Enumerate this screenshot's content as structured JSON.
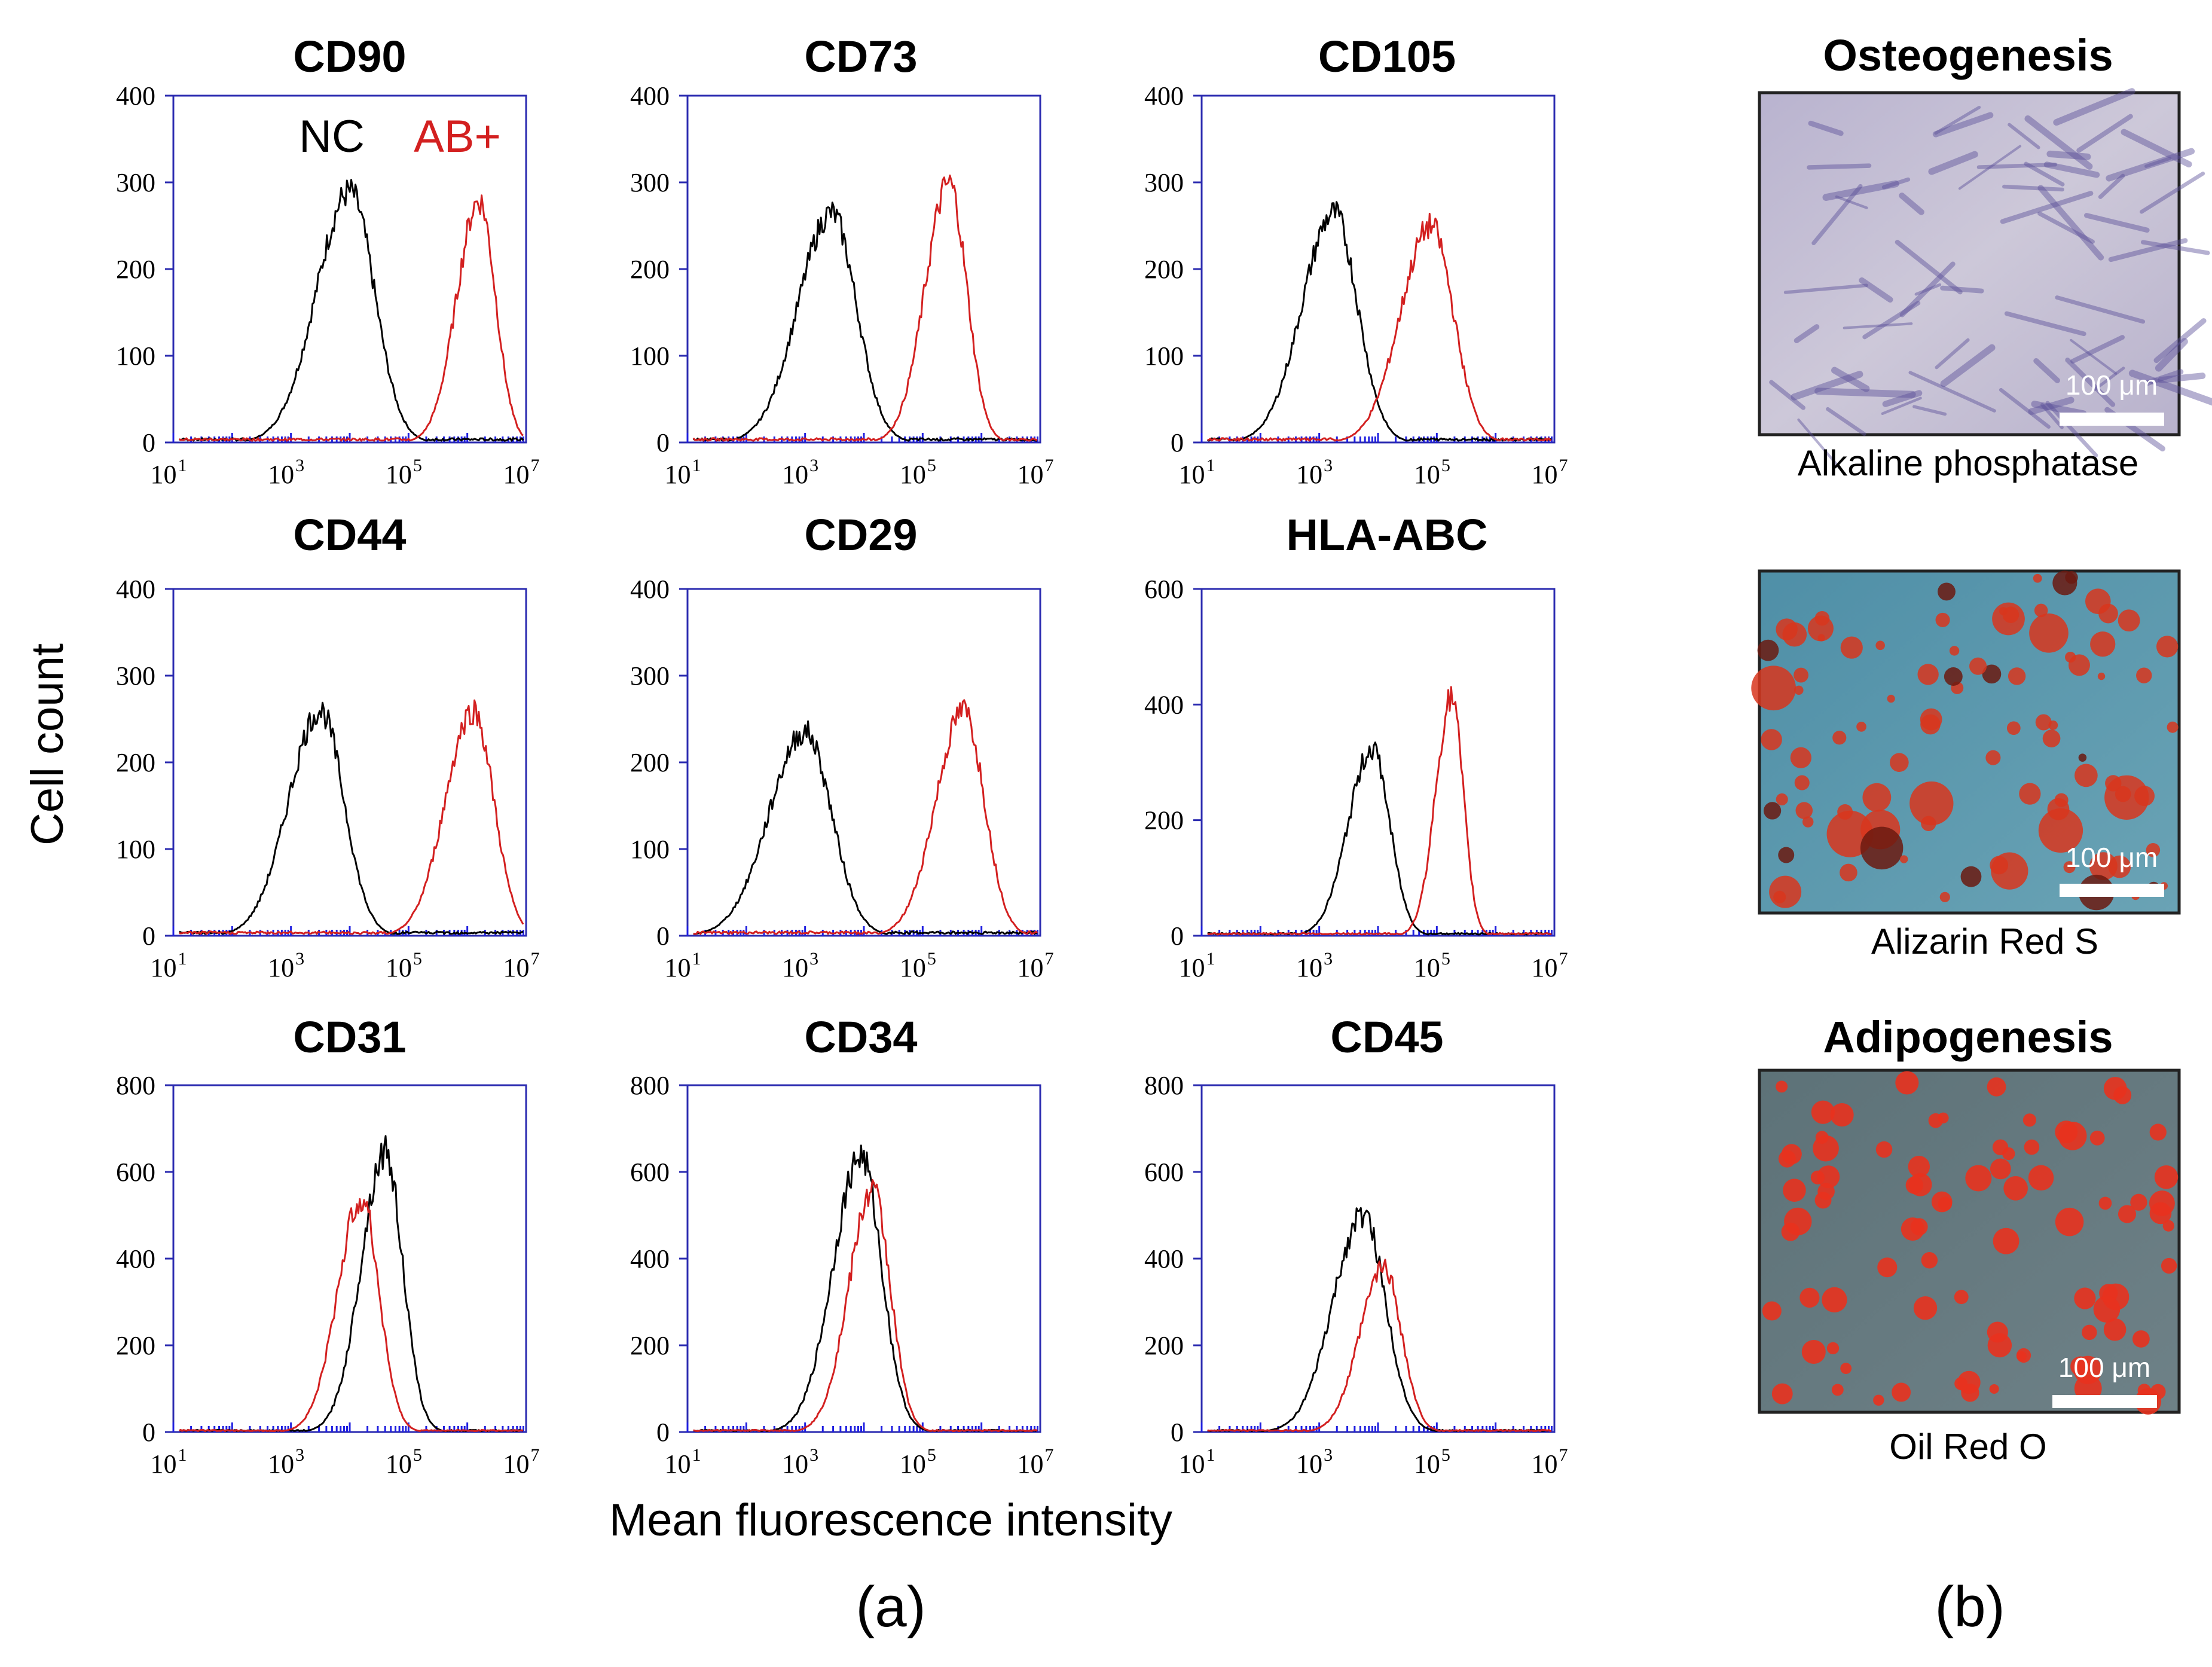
{
  "chart_data": [
    {
      "type": "line",
      "title": "CD90",
      "ylim": [
        0,
        400
      ],
      "yticks": [
        0,
        100,
        200,
        300,
        400
      ],
      "xscale": "log",
      "xticks": [
        "10^1",
        "10^3",
        "10^5",
        "10^7"
      ],
      "series": [
        {
          "name": "NC",
          "color": "#000000",
          "mode": 4.0,
          "peak": 295,
          "sigma": 0.42
        },
        {
          "name": "AB+",
          "color": "#d32020",
          "mode": 6.2,
          "peak": 285,
          "sigma": 0.28
        }
      ]
    },
    {
      "type": "line",
      "title": "CD73",
      "ylim": [
        0,
        400
      ],
      "yticks": [
        0,
        100,
        200,
        300,
        400
      ],
      "xscale": "log",
      "xticks": [
        "10^1",
        "10^3",
        "10^5",
        "10^7"
      ],
      "series": [
        {
          "name": "NC",
          "color": "#000000",
          "mode": 3.45,
          "peak": 270,
          "sigma": 0.42
        },
        {
          "name": "AB+",
          "color": "#d32020",
          "mode": 5.45,
          "peak": 305,
          "sigma": 0.3
        }
      ]
    },
    {
      "type": "line",
      "title": "CD105",
      "ylim": [
        0,
        400
      ],
      "yticks": [
        0,
        100,
        200,
        300,
        400
      ],
      "xscale": "log",
      "xticks": [
        "10^1",
        "10^3",
        "10^5",
        "10^7"
      ],
      "series": [
        {
          "name": "NC",
          "color": "#000000",
          "mode": 3.25,
          "peak": 270,
          "sigma": 0.4
        },
        {
          "name": "AB+",
          "color": "#d32020",
          "mode": 4.9,
          "peak": 255,
          "sigma": 0.38
        }
      ]
    },
    {
      "type": "line",
      "title": "CD44",
      "ylim": [
        0,
        400
      ],
      "yticks": [
        0,
        100,
        200,
        300,
        400
      ],
      "xscale": "log",
      "xticks": [
        "10^1",
        "10^3",
        "10^5",
        "10^7"
      ],
      "series": [
        {
          "name": "NC",
          "color": "#000000",
          "mode": 3.5,
          "peak": 265,
          "sigma": 0.4
        },
        {
          "name": "AB+",
          "color": "#d32020",
          "mode": 6.1,
          "peak": 265,
          "sigma": 0.35
        }
      ]
    },
    {
      "type": "line",
      "title": "CD29",
      "ylim": [
        0,
        400
      ],
      "yticks": [
        0,
        100,
        200,
        300,
        400
      ],
      "xscale": "log",
      "xticks": [
        "10^1",
        "10^3",
        "10^5",
        "10^7"
      ],
      "series": [
        {
          "name": "NC",
          "color": "#000000",
          "mode": 3.0,
          "peak": 240,
          "sigma": 0.45
        },
        {
          "name": "AB+",
          "color": "#d32020",
          "mode": 5.7,
          "peak": 265,
          "sigma": 0.35
        }
      ]
    },
    {
      "type": "line",
      "title": "HLA-ABC",
      "ylim": [
        0,
        600
      ],
      "yticks": [
        0,
        200,
        400,
        600
      ],
      "xscale": "log",
      "xticks": [
        "10^1",
        "10^3",
        "10^5",
        "10^7"
      ],
      "series": [
        {
          "name": "NC",
          "color": "#000000",
          "mode": 3.9,
          "peak": 330,
          "sigma": 0.3
        },
        {
          "name": "AB+",
          "color": "#d32020",
          "mode": 5.25,
          "peak": 420,
          "sigma": 0.2
        }
      ]
    },
    {
      "type": "line",
      "title": "CD31",
      "ylim": [
        0,
        800
      ],
      "yticks": [
        0,
        200,
        400,
        600,
        800
      ],
      "xscale": "log",
      "xticks": [
        "10^1",
        "10^3",
        "10^5",
        "10^7"
      ],
      "series": [
        {
          "name": "NC",
          "color": "#000000",
          "mode": 4.6,
          "peak": 660,
          "sigma": 0.3
        },
        {
          "name": "AB+",
          "color": "#d32020",
          "mode": 4.2,
          "peak": 550,
          "sigma": 0.3
        }
      ]
    },
    {
      "type": "line",
      "title": "CD34",
      "ylim": [
        0,
        800
      ],
      "yticks": [
        0,
        200,
        400,
        600,
        800
      ],
      "xscale": "log",
      "xticks": [
        "10^1",
        "10^3",
        "10^5",
        "10^7"
      ],
      "series": [
        {
          "name": "NC",
          "color": "#000000",
          "mode": 3.95,
          "peak": 650,
          "sigma": 0.35
        },
        {
          "name": "AB+",
          "color": "#d32020",
          "mode": 4.15,
          "peak": 570,
          "sigma": 0.3
        }
      ]
    },
    {
      "type": "line",
      "title": "CD45",
      "ylim": [
        0,
        800
      ],
      "yticks": [
        0,
        200,
        400,
        600,
        800
      ],
      "xscale": "log",
      "xticks": [
        "10^1",
        "10^3",
        "10^5",
        "10^7"
      ],
      "series": [
        {
          "name": "NC",
          "color": "#000000",
          "mode": 3.75,
          "peak": 510,
          "sigma": 0.38
        },
        {
          "name": "AB+",
          "color": "#d32020",
          "mode": 4.1,
          "peak": 390,
          "sigma": 0.3
        }
      ]
    }
  ],
  "legend": {
    "nc": "NC",
    "ab": "AB+"
  },
  "axis": {
    "ylabel": "Cell count",
    "xlabel": "Mean fluorescence intensity"
  },
  "panels": {
    "a": "(a)",
    "b": "(b)"
  },
  "micrographs": [
    {
      "heading": "Osteogenesis",
      "scale": "100 μm",
      "caption": "Alkaline phosphatase",
      "stain": "alkaline-phosphatase"
    },
    {
      "heading": "",
      "scale": "100 μm",
      "caption": "Alizarin Red S",
      "stain": "alizarin-red"
    },
    {
      "heading": "Adipogenesis",
      "scale": "100 μm",
      "caption": "Oil Red O",
      "stain": "oil-red"
    }
  ],
  "colors": {
    "axis": "#2b2bb0",
    "nc": "#000000",
    "ab": "#d32020"
  }
}
